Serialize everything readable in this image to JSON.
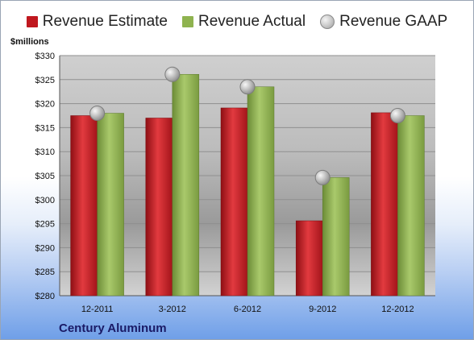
{
  "legend": {
    "estimate": "Revenue Estimate",
    "actual": "Revenue Actual",
    "gaap": "Revenue GAAP"
  },
  "unit_label": "$millions",
  "company": "Century Aluminum",
  "colors": {
    "estimate": "#c0181f",
    "actual": "#8fb34f",
    "gaap": "#c8c8c8"
  },
  "chart_data": {
    "type": "bar",
    "categories": [
      "12-2011",
      "3-2012",
      "6-2012",
      "9-2012",
      "12-2012"
    ],
    "series": [
      {
        "name": "Revenue Estimate",
        "type": "bar",
        "values": [
          317.5,
          317.0,
          319.1,
          295.6,
          318.1
        ]
      },
      {
        "name": "Revenue Actual",
        "type": "bar",
        "values": [
          318.0,
          326.1,
          323.5,
          304.6,
          317.5
        ]
      },
      {
        "name": "Revenue GAAP",
        "type": "scatter",
        "values": [
          318.0,
          326.1,
          323.5,
          304.6,
          317.5
        ]
      }
    ],
    "ylabel": "$millions",
    "ylim": [
      280,
      330
    ],
    "yticks": [
      280,
      285,
      290,
      295,
      300,
      305,
      310,
      315,
      320,
      325,
      330
    ],
    "ytick_labels": [
      "$280",
      "$285",
      "$290",
      "$295",
      "$300",
      "$305",
      "$310",
      "$315",
      "$320",
      "$325",
      "$330"
    ],
    "grid": true,
    "legend_position": "top"
  }
}
